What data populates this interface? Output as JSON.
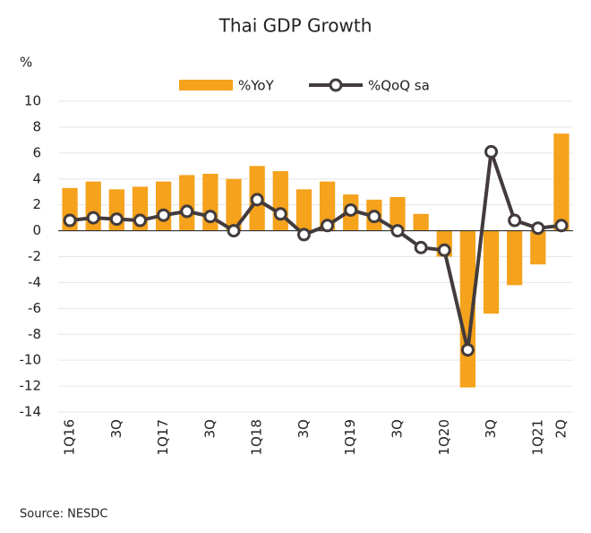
{
  "chart_data": {
    "type": "bar_line",
    "title": "Thai GDP Growth",
    "y_unit": "%",
    "source": "Source: NESDC",
    "categories": [
      "1Q16",
      null,
      "3Q",
      null,
      "1Q17",
      null,
      "3Q",
      null,
      "1Q18",
      null,
      "3Q",
      null,
      "1Q19",
      null,
      "3Q",
      null,
      "1Q20",
      null,
      "3Q",
      null,
      "1Q21",
      "2Q"
    ],
    "series": [
      {
        "name": "%YoY",
        "type": "bar",
        "color": "#f5a21c",
        "values": [
          3.3,
          3.8,
          3.2,
          3.4,
          3.8,
          4.3,
          4.4,
          4.0,
          5.0,
          4.6,
          3.2,
          3.8,
          2.8,
          2.4,
          2.6,
          1.3,
          -2.0,
          -12.1,
          -6.4,
          -4.2,
          -2.6,
          7.5
        ]
      },
      {
        "name": "%QoQ sa",
        "type": "line",
        "color": "#433b3b",
        "values": [
          0.8,
          1.0,
          0.9,
          0.8,
          1.2,
          1.5,
          1.1,
          0.0,
          2.4,
          1.3,
          -0.3,
          0.4,
          1.6,
          1.1,
          0.0,
          -1.3,
          -1.5,
          -9.2,
          6.1,
          0.8,
          0.2,
          0.4
        ]
      }
    ],
    "ylim": [
      -14,
      10
    ],
    "yticks": [
      -14,
      -12,
      -10,
      -8,
      -6,
      -4,
      -2,
      0,
      2,
      4,
      6,
      8,
      10
    ],
    "grid": true
  }
}
